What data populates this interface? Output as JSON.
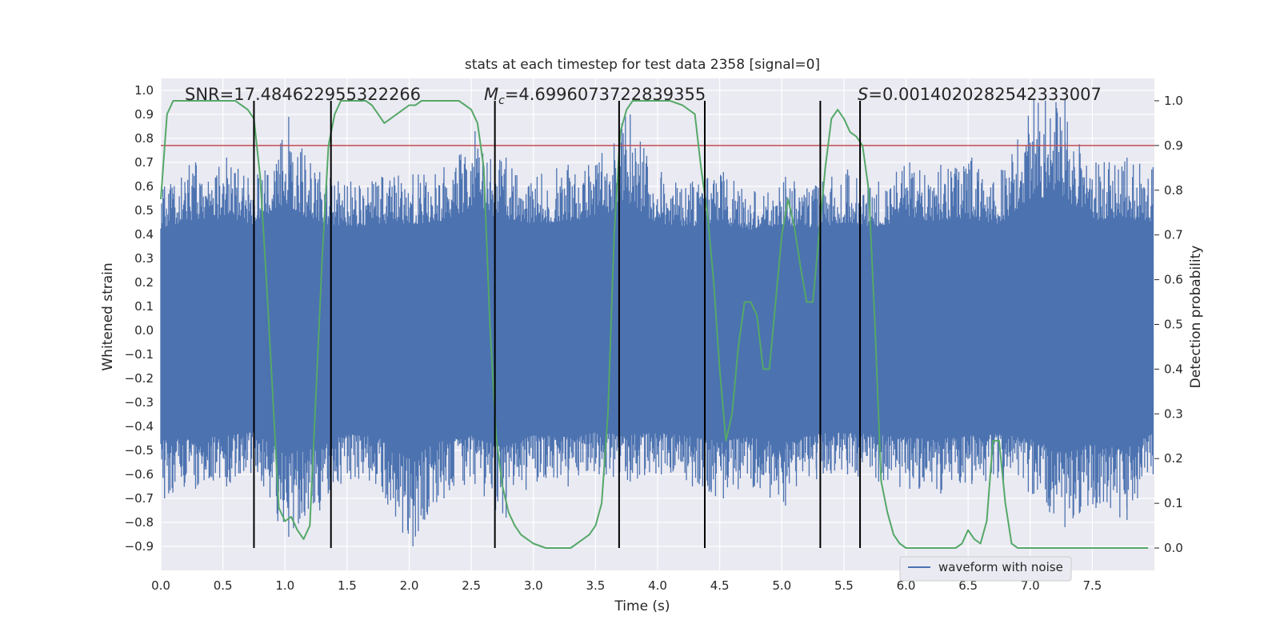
{
  "chart_data": {
    "type": "line",
    "title": "stats at each timestep for test data 2358 [signal=0]",
    "xlabel": "Time (s)",
    "ylabel": "Whitened strain",
    "y2label": "Detection probability",
    "xlim": [
      0.0,
      8.0
    ],
    "ylim": [
      -1.0,
      1.05
    ],
    "y2lim": [
      -0.05,
      1.05
    ],
    "x_ticks": [
      0.0,
      0.5,
      1.0,
      1.5,
      2.0,
      2.5,
      3.0,
      3.5,
      4.0,
      4.5,
      5.0,
      5.5,
      6.0,
      6.5,
      7.0,
      7.5
    ],
    "y_ticks": [
      -0.9,
      -0.8,
      -0.7,
      -0.6,
      -0.5,
      -0.4,
      -0.3,
      -0.2,
      -0.1,
      0.0,
      0.1,
      0.2,
      0.3,
      0.4,
      0.5,
      0.6,
      0.7,
      0.8,
      0.9,
      1.0
    ],
    "y2_ticks": [
      0.0,
      0.1,
      0.2,
      0.3,
      0.4,
      0.5,
      0.6,
      0.7,
      0.8,
      0.9,
      1.0
    ],
    "grid": true,
    "legend_position": "lower-right",
    "annotations": {
      "snr": "SNR=17.484622955322266",
      "mc_prefix": "M",
      "mc_sub": "c",
      "mc_value": "=4.699607372283935 5",
      "s_prefix": "S",
      "s_value": "=0.0014020282542333007"
    },
    "threshold_line": {
      "axis": "y2",
      "value": 0.9,
      "color": "#c44e52"
    },
    "vertical_lines": [
      0.75,
      1.37,
      2.69,
      3.69,
      4.38,
      5.31,
      5.63
    ],
    "series": [
      {
        "name": "waveform with noise",
        "axis": "y",
        "color": "#4c72b0",
        "envelope": {
          "x": [
            0.0,
            0.25,
            0.5,
            0.75,
            1.0,
            1.25,
            1.5,
            1.75,
            2.0,
            2.25,
            2.5,
            2.75,
            3.0,
            3.25,
            3.5,
            3.75,
            4.0,
            4.25,
            4.5,
            4.75,
            5.0,
            5.25,
            5.5,
            5.75,
            6.0,
            6.25,
            6.5,
            6.75,
            7.0,
            7.25,
            7.5,
            7.75,
            8.0
          ],
          "upper": [
            0.6,
            0.7,
            0.72,
            0.65,
            0.89,
            0.66,
            0.62,
            0.64,
            0.65,
            0.68,
            0.83,
            0.72,
            0.64,
            0.69,
            0.7,
            0.9,
            0.66,
            0.62,
            0.66,
            0.58,
            0.64,
            0.6,
            0.67,
            0.62,
            0.7,
            0.69,
            0.72,
            0.65,
            0.96,
            0.96,
            0.7,
            0.72,
            0.68
          ],
          "lower": [
            -0.7,
            -0.66,
            -0.65,
            -0.59,
            -0.86,
            -0.75,
            -0.62,
            -0.65,
            -0.9,
            -0.7,
            -0.64,
            -0.78,
            -0.63,
            -0.65,
            -0.6,
            -0.63,
            -0.6,
            -0.65,
            -0.7,
            -0.65,
            -0.73,
            -0.62,
            -0.6,
            -0.63,
            -0.66,
            -0.68,
            -0.64,
            -0.62,
            -0.68,
            -0.82,
            -0.74,
            -0.79,
            -0.6
          ],
          "core": 0.33
        }
      },
      {
        "name": "",
        "axis": "y2",
        "color": "#55a868",
        "x": [
          0.0,
          0.05,
          0.1,
          0.2,
          0.3,
          0.4,
          0.5,
          0.6,
          0.65,
          0.7,
          0.75,
          0.8,
          0.85,
          0.9,
          0.95,
          1.0,
          1.05,
          1.1,
          1.15,
          1.2,
          1.25,
          1.3,
          1.35,
          1.4,
          1.45,
          1.5,
          1.55,
          1.6,
          1.65,
          1.7,
          1.75,
          1.8,
          1.85,
          1.9,
          1.95,
          2.0,
          2.05,
          2.1,
          2.15,
          2.2,
          2.25,
          2.3,
          2.35,
          2.4,
          2.45,
          2.5,
          2.55,
          2.6,
          2.65,
          2.7,
          2.75,
          2.8,
          2.85,
          2.9,
          2.95,
          3.0,
          3.1,
          3.2,
          3.3,
          3.35,
          3.4,
          3.45,
          3.5,
          3.55,
          3.6,
          3.65,
          3.7,
          3.75,
          3.8,
          3.85,
          3.9,
          4.0,
          4.1,
          4.2,
          4.3,
          4.35,
          4.4,
          4.45,
          4.5,
          4.55,
          4.6,
          4.65,
          4.7,
          4.75,
          4.8,
          4.85,
          4.9,
          4.95,
          5.0,
          5.05,
          5.1,
          5.15,
          5.2,
          5.25,
          5.3,
          5.35,
          5.4,
          5.45,
          5.5,
          5.55,
          5.6,
          5.65,
          5.7,
          5.75,
          5.8,
          5.85,
          5.9,
          5.95,
          6.0,
          6.05,
          6.1,
          6.2,
          6.3,
          6.4,
          6.45,
          6.5,
          6.55,
          6.6,
          6.65,
          6.7,
          6.75,
          6.8,
          6.85,
          6.9,
          7.0,
          7.1,
          7.2,
          7.3,
          7.4,
          7.5,
          7.6,
          7.7,
          7.8,
          7.95
        ],
        "values": [
          0.78,
          0.97,
          1.0,
          1.0,
          1.0,
          1.0,
          1.0,
          1.0,
          0.99,
          0.98,
          0.96,
          0.83,
          0.6,
          0.35,
          0.09,
          0.06,
          0.07,
          0.04,
          0.02,
          0.05,
          0.35,
          0.65,
          0.9,
          0.97,
          1.0,
          1.0,
          1.0,
          1.0,
          1.0,
          0.99,
          0.97,
          0.95,
          0.96,
          0.97,
          0.98,
          0.99,
          0.99,
          1.0,
          1.0,
          1.0,
          1.0,
          1.0,
          1.0,
          1.0,
          0.99,
          0.98,
          0.95,
          0.85,
          0.5,
          0.25,
          0.14,
          0.08,
          0.05,
          0.03,
          0.02,
          0.01,
          0.0,
          0.0,
          0.0,
          0.01,
          0.02,
          0.03,
          0.05,
          0.1,
          0.3,
          0.7,
          0.93,
          0.98,
          1.0,
          1.0,
          1.0,
          1.0,
          1.0,
          0.99,
          0.97,
          0.85,
          0.75,
          0.6,
          0.4,
          0.24,
          0.3,
          0.45,
          0.55,
          0.55,
          0.52,
          0.4,
          0.4,
          0.55,
          0.7,
          0.78,
          0.72,
          0.63,
          0.55,
          0.55,
          0.7,
          0.85,
          0.96,
          0.98,
          0.96,
          0.93,
          0.92,
          0.9,
          0.8,
          0.5,
          0.15,
          0.08,
          0.03,
          0.01,
          0.0,
          0.0,
          0.0,
          0.0,
          0.0,
          0.0,
          0.01,
          0.04,
          0.02,
          0.01,
          0.06,
          0.24,
          0.24,
          0.1,
          0.01,
          0.0,
          0.0,
          0.0,
          0.0,
          0.0,
          0.0,
          0.0,
          0.0,
          0.0,
          0.0,
          0.0
        ]
      }
    ]
  }
}
